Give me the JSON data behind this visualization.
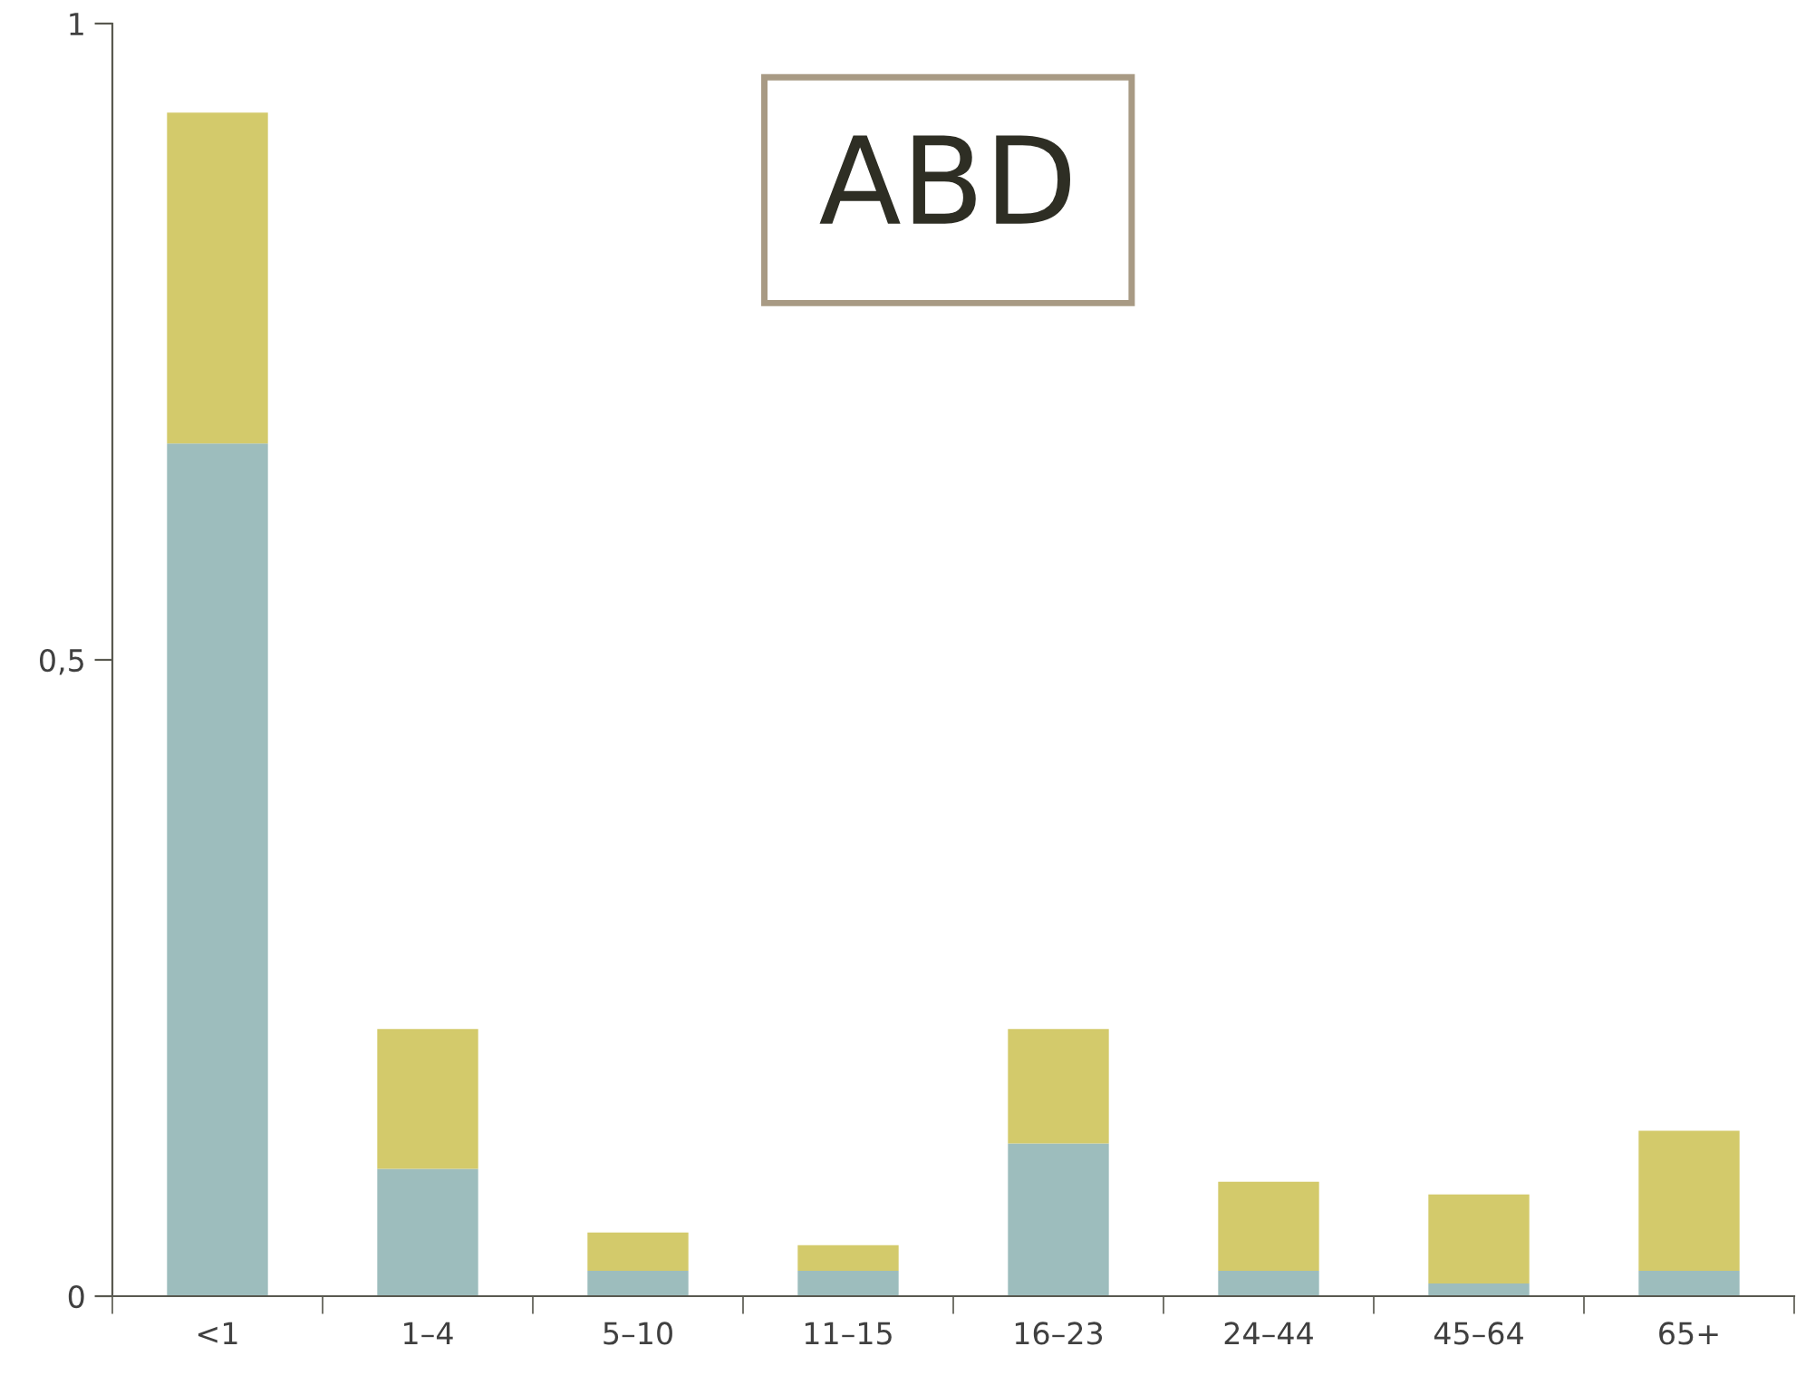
{
  "chart_data": {
    "type": "bar",
    "stacked": true,
    "categories": [
      "<1",
      "1–4",
      "5–10",
      "11–15",
      "16–23",
      "24–44",
      "45–64",
      "65+"
    ],
    "series": [
      {
        "color": "#9dbdbd",
        "values": [
          0.67,
          0.1,
          0.02,
          0.02,
          0.12,
          0.02,
          0.01,
          0.02
        ]
      },
      {
        "color": "#d3ca6b",
        "values": [
          0.26,
          0.11,
          0.03,
          0.02,
          0.09,
          0.07,
          0.07,
          0.11
        ]
      }
    ],
    "ylim": [
      0,
      1
    ],
    "yticks": [
      0,
      {
        "value": 0.5,
        "label": "0,5"
      },
      1
    ],
    "grid": false,
    "legend": false,
    "annotations": [
      "ABD"
    ]
  }
}
